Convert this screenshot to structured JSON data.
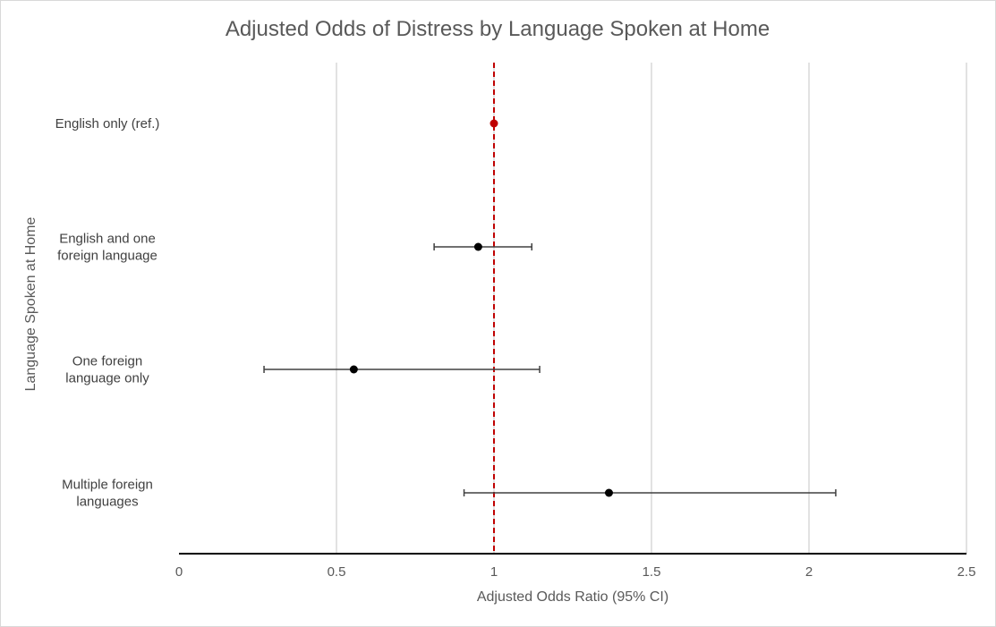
{
  "chart_data": {
    "type": "scatter",
    "title": "Adjusted Odds of Distress by Language Spoken at Home",
    "xlabel": "Adjusted Odds Ratio (95% CI)",
    "ylabel": "Language Spoken at Home",
    "xlim": [
      0,
      2.5
    ],
    "x_ticks": [
      "0",
      "0.5",
      "1",
      "1.5",
      "2",
      "2.5"
    ],
    "grid": "vertical",
    "reference_line": {
      "x": 1,
      "style": "dashed",
      "color": "#c00000"
    },
    "categories": [
      {
        "label_lines": [
          "English only (ref.)"
        ],
        "or": 1.0,
        "ci": null,
        "color": "#c00000"
      },
      {
        "label_lines": [
          "English and one",
          "foreign language"
        ],
        "or": 0.95,
        "ci": [
          0.81,
          1.12
        ],
        "color": "#000000"
      },
      {
        "label_lines": [
          "One foreign",
          "language only"
        ],
        "or": 0.555,
        "ci": [
          0.27,
          1.145
        ],
        "color": "#000000"
      },
      {
        "label_lines": [
          "Multiple foreign",
          "languages"
        ],
        "or": 1.365,
        "ci": [
          0.905,
          2.085
        ],
        "color": "#000000"
      }
    ]
  }
}
